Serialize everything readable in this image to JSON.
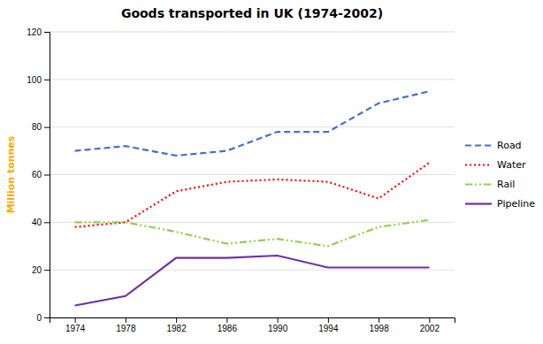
{
  "chart_data": {
    "type": "line",
    "title": "Goods transported in UK (1974-2002)",
    "ylabel": "Million tonnes",
    "x": [
      1974,
      1978,
      1982,
      1986,
      1990,
      1994,
      1998,
      2002
    ],
    "xlim": [
      1972,
      2004
    ],
    "xticks": [
      1974,
      1978,
      1982,
      1986,
      1990,
      1994,
      1998,
      2002
    ],
    "ylim": [
      0,
      120
    ],
    "yticks": [
      0,
      20,
      40,
      60,
      80,
      100,
      120
    ],
    "grid": true,
    "legend": "right",
    "series": [
      {
        "name": "Road",
        "color": "#4472C4",
        "line_style": "dashed",
        "values": [
          70,
          72,
          68,
          70,
          78,
          78,
          90,
          95
        ]
      },
      {
        "name": "Water",
        "color": "#FF0000",
        "line_style": "dotted",
        "values": [
          38,
          40,
          53,
          57,
          58,
          57,
          50,
          65
        ]
      },
      {
        "name": "Rail",
        "color": "#92D050",
        "line_style": "dashdotdot",
        "values": [
          40,
          40,
          36,
          31,
          33,
          30,
          38,
          41
        ]
      },
      {
        "name": "Pipeline",
        "color": "#7030A0",
        "line_style": "solid",
        "values": [
          5,
          9,
          25,
          25,
          26,
          21,
          21,
          21
        ]
      }
    ]
  }
}
